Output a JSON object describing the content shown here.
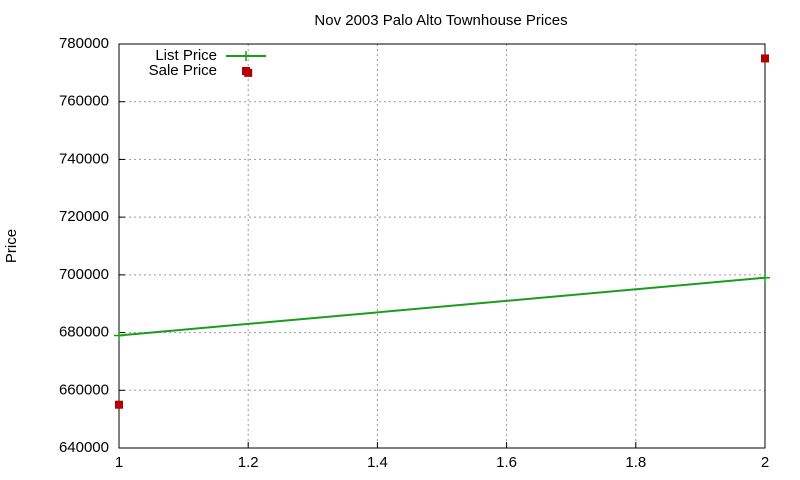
{
  "chart_data": {
    "type": "line",
    "title": "Nov 2003 Palo Alto Townhouse Prices",
    "y_label": "Price",
    "series": [
      {
        "name": "List Price",
        "color": "#1a9e1a",
        "style": "linespoints",
        "x": [
          1,
          2
        ],
        "values": [
          679000,
          699000
        ]
      },
      {
        "name": "Sale Price",
        "color": "#b30000",
        "style": "points",
        "x": [
          1,
          1.2,
          2
        ],
        "values": [
          655000,
          770000,
          775000
        ]
      }
    ],
    "xlim": [
      1,
      2
    ],
    "xticks": [
      1,
      1.2,
      1.4,
      1.6,
      1.8,
      2
    ],
    "ylim": [
      640000,
      780000
    ],
    "yticks": [
      640000,
      660000,
      680000,
      700000,
      720000,
      740000,
      760000,
      780000
    ],
    "grid": true,
    "legend": "top-left"
  }
}
